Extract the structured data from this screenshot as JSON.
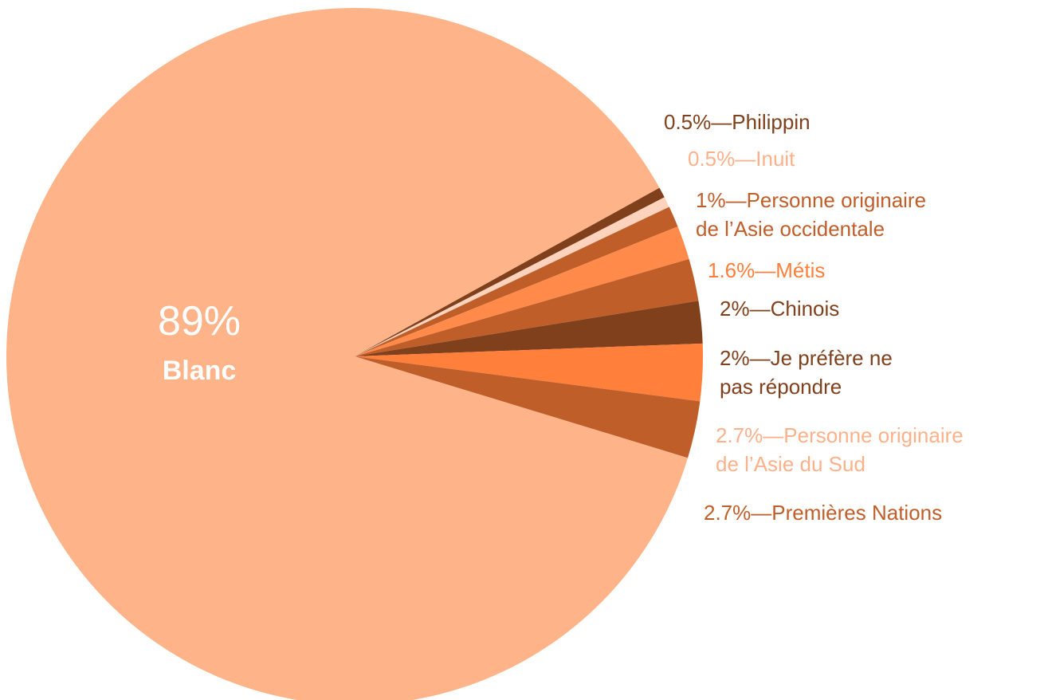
{
  "chart_data": {
    "type": "pie",
    "values": [
      89,
      0.5,
      0.5,
      1,
      1.6,
      2,
      2,
      2.7,
      2.7
    ],
    "value_labels": [
      "89%\nBlanc",
      "0.5%—Philippin",
      "0.5%—Inuit",
      "1%—Personne originaire\nde l’Asie occidentale",
      "1.6%—Métis",
      "2%—Chinois",
      "2%—Je préfère ne\npas répondre",
      "2.7%—Personne originaire\nde l’Asie du Sud",
      "2.7%—Premières Nations"
    ],
    "colors": [
      "#feb388",
      "#80401c",
      "#fdd3bd",
      "#c05e2a",
      "#ff8a4a",
      "#c05e2a",
      "#80401c",
      "#ff7f3b",
      "#c05e2a"
    ],
    "label_colors": [
      "#ffffff",
      "#80401c",
      "#fdb18a",
      "#c05e2a",
      "#ff7f3b",
      "#80401c",
      "#80401c",
      "#fdb18a",
      "#c05e2a"
    ]
  }
}
